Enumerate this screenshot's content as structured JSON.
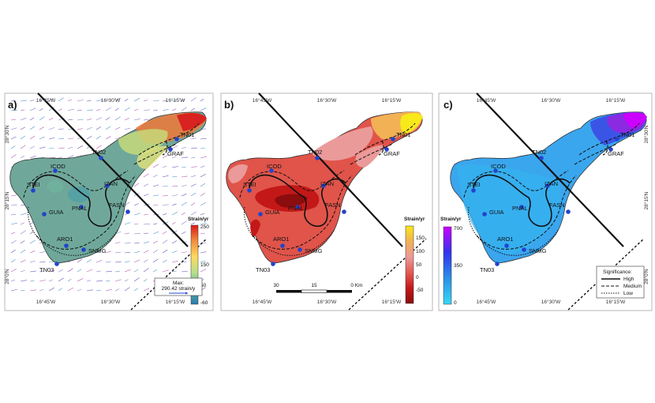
{
  "panels": [
    {
      "id": "a",
      "label": "a)",
      "stations": [
        {
          "code": "TN01"
        },
        {
          "code": "GRAF"
        },
        {
          "code": "TN02"
        },
        {
          "code": "ICOD"
        },
        {
          "code": "STEI"
        },
        {
          "code": "IZAN"
        },
        {
          "code": "GUIA"
        },
        {
          "code": "PNAL"
        },
        {
          "code": "FASN"
        },
        {
          "code": "ARO1"
        },
        {
          "code": "SNMG"
        },
        {
          "code": "TN03"
        }
      ],
      "lon_top": [
        "16°45'W",
        "16°30'W",
        "16°15'W"
      ],
      "lon_bottom": [
        "16°45'W",
        "16°30'W",
        "16°15'W"
      ],
      "lat_left": [
        "28°30'N",
        "28°15'N",
        "28°0'N"
      ],
      "colorbar": {
        "title": "Strain/yr",
        "ticks": [
          "250",
          "150",
          "50",
          "-60"
        ],
        "colors": [
          "#d7191c",
          "#f28d3b",
          "#fdd95f",
          "#b6df8c",
          "#5fb08f",
          "#2b7bb0"
        ]
      },
      "legend": {
        "line1": "Max:",
        "line2": "290.42 strain/y"
      }
    },
    {
      "id": "b",
      "label": "b)",
      "stations": [
        {
          "code": "TN01"
        },
        {
          "code": "GRAF"
        },
        {
          "code": "TN02"
        },
        {
          "code": "ICOD"
        },
        {
          "code": "STEI"
        },
        {
          "code": "IZAN"
        },
        {
          "code": "GUIA"
        },
        {
          "code": "PNAL"
        },
        {
          "code": "FASN"
        },
        {
          "code": "ARO1"
        },
        {
          "code": "SNMG"
        },
        {
          "code": "TN03"
        }
      ],
      "lon_top": [
        "16°45'W",
        "16°30'W",
        "16°15'W"
      ],
      "lon_bottom": [
        "16°45'W",
        "16°30'W",
        "16°15'W"
      ],
      "colorbar": {
        "title": "Strain/yr",
        "ticks": [
          "150",
          "100",
          "50",
          "0",
          "-50"
        ],
        "colors": [
          "#f7e91a",
          "#f2b155",
          "#eb9a9a",
          "#e55a52",
          "#c41818",
          "#8c0d0d"
        ]
      },
      "scalebar": {
        "ticks": [
          "30",
          "15",
          "0 Km"
        ]
      }
    },
    {
      "id": "c",
      "label": "c)",
      "stations": [
        {
          "code": "TN01"
        },
        {
          "code": "GRAF"
        },
        {
          "code": "TN02"
        },
        {
          "code": "ICOD"
        },
        {
          "code": "STEI"
        },
        {
          "code": "IZAN"
        },
        {
          "code": "GUIA"
        },
        {
          "code": "PNAL"
        },
        {
          "code": "FASN"
        },
        {
          "code": "ARO1"
        },
        {
          "code": "SNMG"
        },
        {
          "code": "TN03"
        }
      ],
      "lon_top": [
        "16°45'W",
        "16°30'W",
        "16°15'W"
      ],
      "lon_bottom": [
        "16°45'W",
        "16°30'W",
        "16°15'W"
      ],
      "lat_right": [
        "28°30'N",
        "28°15'N",
        "28°0'N"
      ],
      "colorbar": {
        "title": "Strain/yr",
        "ticks": [
          "700",
          "350",
          "0"
        ],
        "colors": [
          "#cc00ff",
          "#3333ee",
          "#2a90e8",
          "#3ad8f5"
        ]
      },
      "significance": {
        "title": "Significance:",
        "high": "High",
        "medium": "Medium",
        "low": "Low"
      }
    }
  ],
  "colors": {
    "station_dot": "#2244cc",
    "panel_a_bg": "#6fa89a",
    "panel_b_bg": "#e0544a",
    "panel_c_bg": "#3aa6ee"
  }
}
